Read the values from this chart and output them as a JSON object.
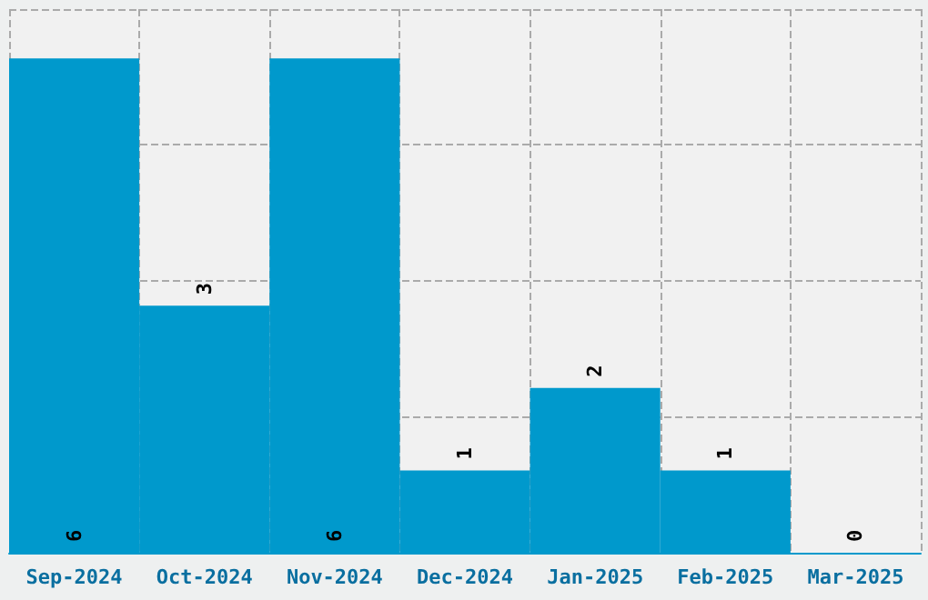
{
  "chart_data": {
    "type": "bar",
    "categories": [
      "Sep-2024",
      "Oct-2024",
      "Nov-2024",
      "Dec-2024",
      "Jan-2025",
      "Feb-2025",
      "Mar-2025"
    ],
    "values": [
      6,
      3,
      6,
      1,
      2,
      1,
      0
    ],
    "color": "#0099cc",
    "data_labels": true,
    "grid": true,
    "tick_labels": "x",
    "ylim": [
      0,
      6.6
    ],
    "yticks": [
      {
        "value": 0,
        "label": null
      },
      {
        "value": 1.65,
        "label": null
      },
      {
        "value": 3.3,
        "label": null
      },
      {
        "value": 4.95,
        "label": null
      },
      {
        "value": 6.6,
        "label": null
      }
    ]
  }
}
